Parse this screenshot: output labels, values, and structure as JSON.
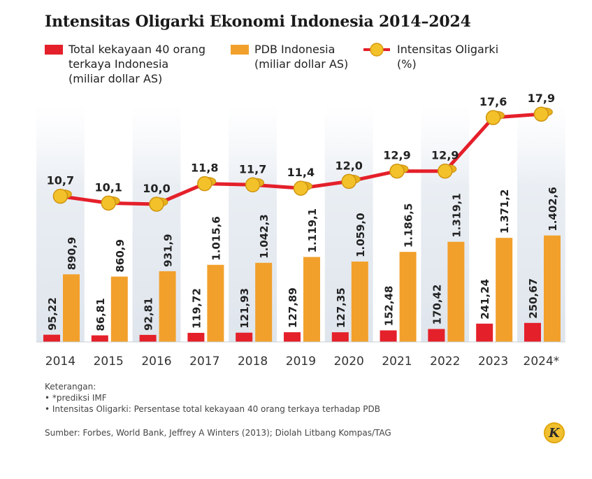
{
  "title": "Intensitas Oligarki Ekonomi Indonesia 2014–2024",
  "legend": {
    "wealth": "Total kekayaan 40 orang\nterkaya Indonesia\n(miliar dollar AS)",
    "gdp": "PDB Indonesia\n(miliar dollar AS)",
    "intensity": "Intensitas Oligarki\n(%)"
  },
  "colors": {
    "wealth": "#e4202a",
    "gdp": "#f2a02c",
    "intensity": "#e4202a",
    "coin": "#f3c22b"
  },
  "chart_data": {
    "type": "bar",
    "categories": [
      "2014",
      "2015",
      "2016",
      "2017",
      "2018",
      "2019",
      "2020",
      "2021",
      "2022",
      "2023",
      "2024*"
    ],
    "series": [
      {
        "name": "Total kekayaan 40 orang terkaya Indonesia (miliar dollar AS)",
        "type": "bar",
        "values": [
          95.22,
          86.81,
          92.81,
          119.72,
          121.93,
          127.89,
          127.35,
          152.48,
          170.42,
          241.24,
          250.67
        ],
        "labels": [
          "95,22",
          "86,81",
          "92,81",
          "119,72",
          "121,93",
          "127,89",
          "127,35",
          "152,48",
          "170,42",
          "241,24",
          "250,67"
        ]
      },
      {
        "name": "PDB Indonesia (miliar dollar AS)",
        "type": "bar",
        "values": [
          890.9,
          860.9,
          931.9,
          1015.6,
          1042.3,
          1119.1,
          1059.0,
          1186.5,
          1319.1,
          1371.2,
          1402.6
        ],
        "labels": [
          "890,9",
          "860,9",
          "931,9",
          "1.015,6",
          "1.042,3",
          "1.119,1",
          "1.059,0",
          "1.186,5",
          "1.319,1",
          "1.371,2",
          "1.402,6"
        ]
      },
      {
        "name": "Intensitas Oligarki (%)",
        "type": "line",
        "values": [
          10.7,
          10.1,
          10.0,
          11.8,
          11.7,
          11.4,
          12.0,
          12.9,
          12.9,
          17.6,
          17.9
        ],
        "labels": [
          "10,7",
          "10,1",
          "10,0",
          "11,8",
          "11,7",
          "11,4",
          "12,0",
          "12,9",
          "12,9",
          "17,6",
          "17,9"
        ]
      }
    ],
    "grid": false,
    "legend_position": "top"
  },
  "notes": {
    "heading": "Keterangan:",
    "items": [
      "• *prediksi IMF",
      "• Intensitas Oligarki: Persentase total kekayaan 40 orang terkaya terhadap PDB"
    ]
  },
  "source": "Sumber: Forbes, World Bank, Jeffrey A Winters (2013); Diolah Litbang Kompas/TAG",
  "logo_letter": "K"
}
